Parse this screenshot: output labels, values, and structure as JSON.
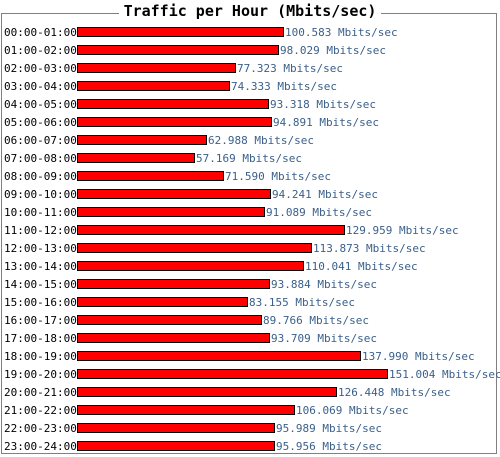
{
  "chart_data": {
    "type": "bar",
    "orientation": "horizontal",
    "title": "Traffic per Hour (Mbits/sec)",
    "unit": "Mbits/sec",
    "categories": [
      "00:00-01:00",
      "01:00-02:00",
      "02:00-03:00",
      "03:00-04:00",
      "04:00-05:00",
      "05:00-06:00",
      "06:00-07:00",
      "07:00-08:00",
      "08:00-09:00",
      "09:00-10:00",
      "10:00-11:00",
      "11:00-12:00",
      "12:00-13:00",
      "13:00-14:00",
      "14:00-15:00",
      "15:00-16:00",
      "16:00-17:00",
      "17:00-18:00",
      "18:00-19:00",
      "19:00-20:00",
      "20:00-21:00",
      "21:00-22:00",
      "22:00-23:00",
      "23:00-24:00"
    ],
    "values": [
      100.583,
      98.029,
      77.323,
      74.333,
      93.318,
      94.891,
      62.988,
      57.169,
      71.59,
      94.241,
      91.089,
      129.959,
      113.873,
      110.041,
      93.884,
      83.155,
      89.766,
      93.709,
      137.99,
      151.004,
      126.448,
      106.069,
      95.989,
      95.956
    ],
    "value_labels": [
      "100.583 Mbits/sec",
      "98.029 Mbits/sec",
      "77.323 Mbits/sec",
      "74.333 Mbits/sec",
      "93.318 Mbits/sec",
      "94.891 Mbits/sec",
      "62.988 Mbits/sec",
      "57.169 Mbits/sec",
      "71.590 Mbits/sec",
      "94.241 Mbits/sec",
      "91.089 Mbits/sec",
      "129.959 Mbits/sec",
      "113.873 Mbits/sec",
      "110.041 Mbits/sec",
      "93.884 Mbits/sec",
      "83.155 Mbits/sec",
      "89.766 Mbits/sec",
      "93.709 Mbits/sec",
      "137.990 Mbits/sec",
      "151.004 Mbits/sec",
      "126.448 Mbits/sec",
      "106.069 Mbits/sec",
      "95.989 Mbits/sec",
      "95.956 Mbits/sec"
    ],
    "bar_color": "#ff0000",
    "label_color": "#3a5f8a",
    "grid": false,
    "legend": "none"
  }
}
